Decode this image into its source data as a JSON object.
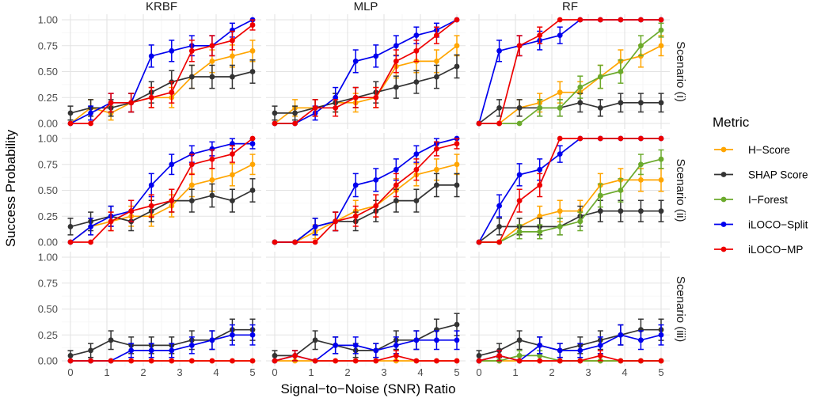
{
  "chart_data": {
    "type": "line",
    "xlabel": "Signal−to−Noise (SNR) Ratio",
    "ylabel": "Success Probability",
    "xlim": [
      0,
      5
    ],
    "ylim": [
      0,
      1
    ],
    "x_ticks": [
      "0",
      "1",
      "2",
      "3",
      "4",
      "5"
    ],
    "y_ticks": [
      "0.00",
      "0.25",
      "0.50",
      "0.75",
      "1.00"
    ],
    "grid": true,
    "legend_title": "Metric",
    "legend_placement": "right",
    "columns": [
      "KRBF",
      "MLP",
      "RF"
    ],
    "rows": [
      "Scenario (i)",
      "Scenario (ii)",
      "Scenario (iii)"
    ],
    "x": [
      0,
      0.556,
      1.111,
      1.667,
      2.222,
      2.778,
      3.333,
      3.889,
      4.444,
      5
    ],
    "series": [
      {
        "name": "H−Score",
        "color": "#FFA500"
      },
      {
        "name": "SHAP Score",
        "color": "#333333"
      },
      {
        "name": "I−Forest",
        "color": "#6BAA2C"
      },
      {
        "name": "iLOCO−Split",
        "color": "#0000EE"
      },
      {
        "name": "iLOCO−MP",
        "color": "#EE0000"
      }
    ],
    "panels": [
      {
        "row": 0,
        "col": 0,
        "lines": {
          "H−Score": [
            0,
            0.15,
            0.1,
            0.2,
            0.25,
            0.25,
            0.45,
            0.6,
            0.65,
            0.7
          ],
          "SHAP Score": [
            0.1,
            0.15,
            0.15,
            0.2,
            0.3,
            0.4,
            0.45,
            0.45,
            0.45,
            0.5
          ],
          "iLOCO−Split": [
            0,
            0.1,
            0.2,
            0.2,
            0.65,
            0.7,
            0.75,
            0.75,
            0.9,
            1.0
          ],
          "iLOCO−MP": [
            0,
            0,
            0.2,
            0.2,
            0.25,
            0.3,
            0.7,
            0.75,
            0.8,
            0.95
          ]
        }
      },
      {
        "row": 0,
        "col": 1,
        "lines": {
          "H−Score": [
            0,
            0.15,
            0.15,
            0.2,
            0.2,
            0.25,
            0.55,
            0.6,
            0.6,
            0.75
          ],
          "SHAP Score": [
            0.1,
            0.1,
            0.15,
            0.2,
            0.25,
            0.3,
            0.35,
            0.4,
            0.45,
            0.55
          ],
          "iLOCO−Split": [
            0,
            0,
            0.1,
            0.25,
            0.6,
            0.65,
            0.75,
            0.85,
            0.9,
            1.0
          ],
          "iLOCO−MP": [
            0,
            0,
            0.15,
            0.15,
            0.25,
            0.25,
            0.6,
            0.7,
            0.85,
            1.0
          ]
        }
      },
      {
        "row": 0,
        "col": 2,
        "lines": {
          "H−Score": [
            0,
            0,
            0.15,
            0.2,
            0.3,
            0.3,
            0.45,
            0.6,
            0.65,
            0.75
          ],
          "SHAP Score": [
            0,
            0.15,
            0.15,
            0.15,
            0.15,
            0.2,
            0.15,
            0.2,
            0.2,
            0.2
          ],
          "I−Forest": [
            0,
            0,
            0,
            0.15,
            0.15,
            0.35,
            0.45,
            0.5,
            0.75,
            0.9
          ],
          "iLOCO−Split": [
            0,
            0.7,
            0.75,
            0.8,
            0.85,
            1.0,
            1.0,
            1.0,
            1.0,
            1.0
          ],
          "iLOCO−MP": [
            0,
            0,
            0.75,
            0.85,
            1.0,
            1.0,
            1.0,
            1.0,
            1.0,
            1.0
          ]
        }
      },
      {
        "row": 1,
        "col": 0,
        "lines": {
          "H−Score": [
            0,
            0.15,
            0.2,
            0.25,
            0.25,
            0.35,
            0.55,
            0.6,
            0.65,
            0.75
          ],
          "SHAP Score": [
            0.15,
            0.2,
            0.25,
            0.2,
            0.3,
            0.4,
            0.4,
            0.45,
            0.4,
            0.5
          ],
          "iLOCO−Split": [
            0,
            0.15,
            0.25,
            0.3,
            0.55,
            0.75,
            0.85,
            0.9,
            0.95,
            0.95
          ],
          "iLOCO−MP": [
            0,
            0,
            0.2,
            0.3,
            0.35,
            0.4,
            0.75,
            0.8,
            0.85,
            1.0
          ]
        }
      },
      {
        "row": 1,
        "col": 1,
        "lines": {
          "H−Score": [
            0,
            0,
            0.1,
            0.2,
            0.3,
            0.35,
            0.5,
            0.65,
            0.7,
            0.75
          ],
          "SHAP Score": [
            0,
            0,
            0.15,
            0.2,
            0.2,
            0.3,
            0.4,
            0.4,
            0.55,
            0.55
          ],
          "iLOCO−Split": [
            0,
            0,
            0.15,
            0.2,
            0.55,
            0.6,
            0.7,
            0.85,
            0.95,
            1.0
          ],
          "iLOCO−MP": [
            0,
            0,
            0,
            0.2,
            0.25,
            0.35,
            0.55,
            0.7,
            0.9,
            0.95
          ]
        }
      },
      {
        "row": 1,
        "col": 2,
        "lines": {
          "H−Score": [
            0,
            0,
            0.15,
            0.25,
            0.3,
            0.3,
            0.55,
            0.6,
            0.6,
            0.6
          ],
          "SHAP Score": [
            0,
            0.15,
            0.15,
            0.15,
            0.15,
            0.25,
            0.3,
            0.3,
            0.3,
            0.3
          ],
          "I−Forest": [
            0,
            0,
            0.1,
            0.1,
            0.15,
            0.2,
            0.45,
            0.5,
            0.75,
            0.8
          ],
          "iLOCO−Split": [
            0,
            0.35,
            0.65,
            0.7,
            0.85,
            1.0,
            1.0,
            1.0,
            1.0,
            1.0
          ],
          "iLOCO−MP": [
            0,
            0,
            0.4,
            0.55,
            1.0,
            1.0,
            1.0,
            1.0,
            1.0,
            1.0
          ]
        }
      },
      {
        "row": 2,
        "col": 0,
        "lines": {
          "H−Score": [
            0,
            0,
            0,
            0,
            0,
            0,
            0,
            0,
            0,
            0
          ],
          "SHAP Score": [
            0.05,
            0.1,
            0.2,
            0.15,
            0.15,
            0.15,
            0.2,
            0.2,
            0.3,
            0.3
          ],
          "iLOCO−Split": [
            0,
            0,
            0,
            0.1,
            0.1,
            0.1,
            0.15,
            0.2,
            0.25,
            0.25
          ],
          "iLOCO−MP": [
            0,
            0,
            0,
            0,
            0,
            0,
            0,
            0,
            0,
            0
          ]
        }
      },
      {
        "row": 2,
        "col": 1,
        "lines": {
          "H−Score": [
            0,
            0,
            0,
            0,
            0,
            0,
            0,
            0,
            0,
            0
          ],
          "SHAP Score": [
            0.05,
            0.05,
            0.2,
            0.15,
            0.1,
            0.1,
            0.2,
            0.2,
            0.3,
            0.35
          ],
          "iLOCO−Split": [
            0,
            0.05,
            0,
            0.15,
            0.15,
            0.1,
            0.15,
            0.2,
            0.2,
            0.2
          ],
          "iLOCO−MP": [
            0,
            0.05,
            0,
            0,
            0,
            0,
            0.05,
            0,
            0,
            0
          ]
        }
      },
      {
        "row": 2,
        "col": 2,
        "lines": {
          "H−Score": [
            0,
            0,
            0,
            0,
            0,
            0,
            0,
            0,
            0,
            0
          ],
          "SHAP Score": [
            0.05,
            0.1,
            0.2,
            0.15,
            0.1,
            0.15,
            0.2,
            0.25,
            0.3,
            0.3
          ],
          "I−Forest": [
            0,
            0,
            0.05,
            0.05,
            0,
            0,
            0,
            0,
            0,
            0
          ],
          "iLOCO−Split": [
            0,
            0.05,
            0,
            0.15,
            0.1,
            0.1,
            0.15,
            0.25,
            0.2,
            0.25
          ],
          "iLOCO−MP": [
            0,
            0.05,
            0,
            0,
            0,
            0,
            0.05,
            0,
            0,
            0
          ]
        }
      }
    ]
  }
}
